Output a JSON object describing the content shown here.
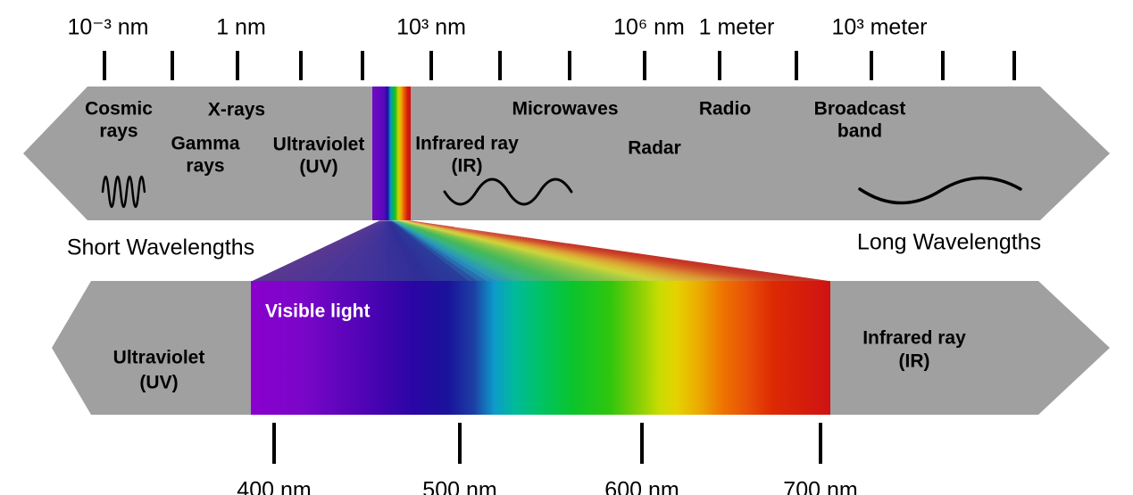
{
  "top_scale": {
    "labels": [
      "10⁻³ nm",
      "1 nm",
      "10³ nm",
      "10⁶ nm",
      "1 meter",
      "10³ meter"
    ]
  },
  "top_bar": {
    "cosmic_rays_line1": "Cosmic",
    "cosmic_rays_line2": "rays",
    "x_rays": "X-rays",
    "gamma_rays_line1": "Gamma",
    "gamma_rays_line2": "rays",
    "ultraviolet_line1": "Ultraviolet",
    "ultraviolet_line2": "(UV)",
    "infrared_line1": "Infrared ray",
    "infrared_line2": "(IR)",
    "microwaves": "Microwaves",
    "radar": "Radar",
    "radio": "Radio",
    "broadcast_line1": "Broadcast",
    "broadcast_line2": "band"
  },
  "annotations": {
    "short_wavelengths": "Short Wavelengths",
    "long_wavelengths": "Long Wavelengths"
  },
  "bottom_bar": {
    "ultraviolet_line1": "Ultraviolet",
    "ultraviolet_line2": "(UV)",
    "visible_light": "Visible light",
    "infrared_line1": "Infrared ray",
    "infrared_line2": "(IR)"
  },
  "bottom_scale": {
    "labels": [
      "400 nm",
      "500 nm",
      "600 nm",
      "700 nm"
    ]
  },
  "colors": {
    "background": "#FFFFFF",
    "bar_gray": "#A0A0A0",
    "tick_black": "#000000",
    "wave_black": "#000000",
    "label_text": "#000000",
    "visible_light_text": "#FFFFFF",
    "spectrum_stops": [
      [
        0.0,
        "#8A00CE"
      ],
      [
        0.09,
        "#7A06C8"
      ],
      [
        0.19,
        "#5204B6"
      ],
      [
        0.28,
        "#2B05A5"
      ],
      [
        0.34,
        "#1A129B"
      ],
      [
        0.385,
        "#1C3FA4"
      ],
      [
        0.42,
        "#0E9BCB"
      ],
      [
        0.455,
        "#00BA9C"
      ],
      [
        0.5,
        "#00C365"
      ],
      [
        0.555,
        "#0AC42C"
      ],
      [
        0.62,
        "#2FC60E"
      ],
      [
        0.665,
        "#7FCE05"
      ],
      [
        0.705,
        "#C9DC02"
      ],
      [
        0.735,
        "#E6D200"
      ],
      [
        0.775,
        "#ECA900"
      ],
      [
        0.815,
        "#EE7300"
      ],
      [
        0.855,
        "#E95107"
      ],
      [
        0.9,
        "#DD2A03"
      ],
      [
        1.0,
        "#CF1213"
      ]
    ],
    "strip_stops": [
      [
        0.0,
        "#6E0AC2"
      ],
      [
        0.3,
        "#5A08BC"
      ],
      [
        0.4,
        "#1C0E9E"
      ],
      [
        0.47,
        "#0D8FC4"
      ],
      [
        0.53,
        "#00B464"
      ],
      [
        0.6,
        "#2BBD1B"
      ],
      [
        0.68,
        "#C8D705"
      ],
      [
        0.75,
        "#EDA800"
      ],
      [
        0.83,
        "#E85A05"
      ],
      [
        0.92,
        "#D31A0B"
      ],
      [
        1.0,
        "#CE1113"
      ]
    ],
    "fan_stops": [
      [
        0.0,
        "#5B3990"
      ],
      [
        0.18,
        "#44349A"
      ],
      [
        0.3,
        "#2F2F97"
      ],
      [
        0.37,
        "#2A3E9B"
      ],
      [
        0.42,
        "#2894BE"
      ],
      [
        0.47,
        "#36B28B"
      ],
      [
        0.53,
        "#43B95A"
      ],
      [
        0.63,
        "#8FC647"
      ],
      [
        0.7,
        "#CCD53B"
      ],
      [
        0.75,
        "#D9BC36"
      ],
      [
        0.81,
        "#DB9232"
      ],
      [
        0.87,
        "#D5602B"
      ],
      [
        0.93,
        "#C93F27"
      ],
      [
        1.0,
        "#C22F26"
      ]
    ]
  }
}
